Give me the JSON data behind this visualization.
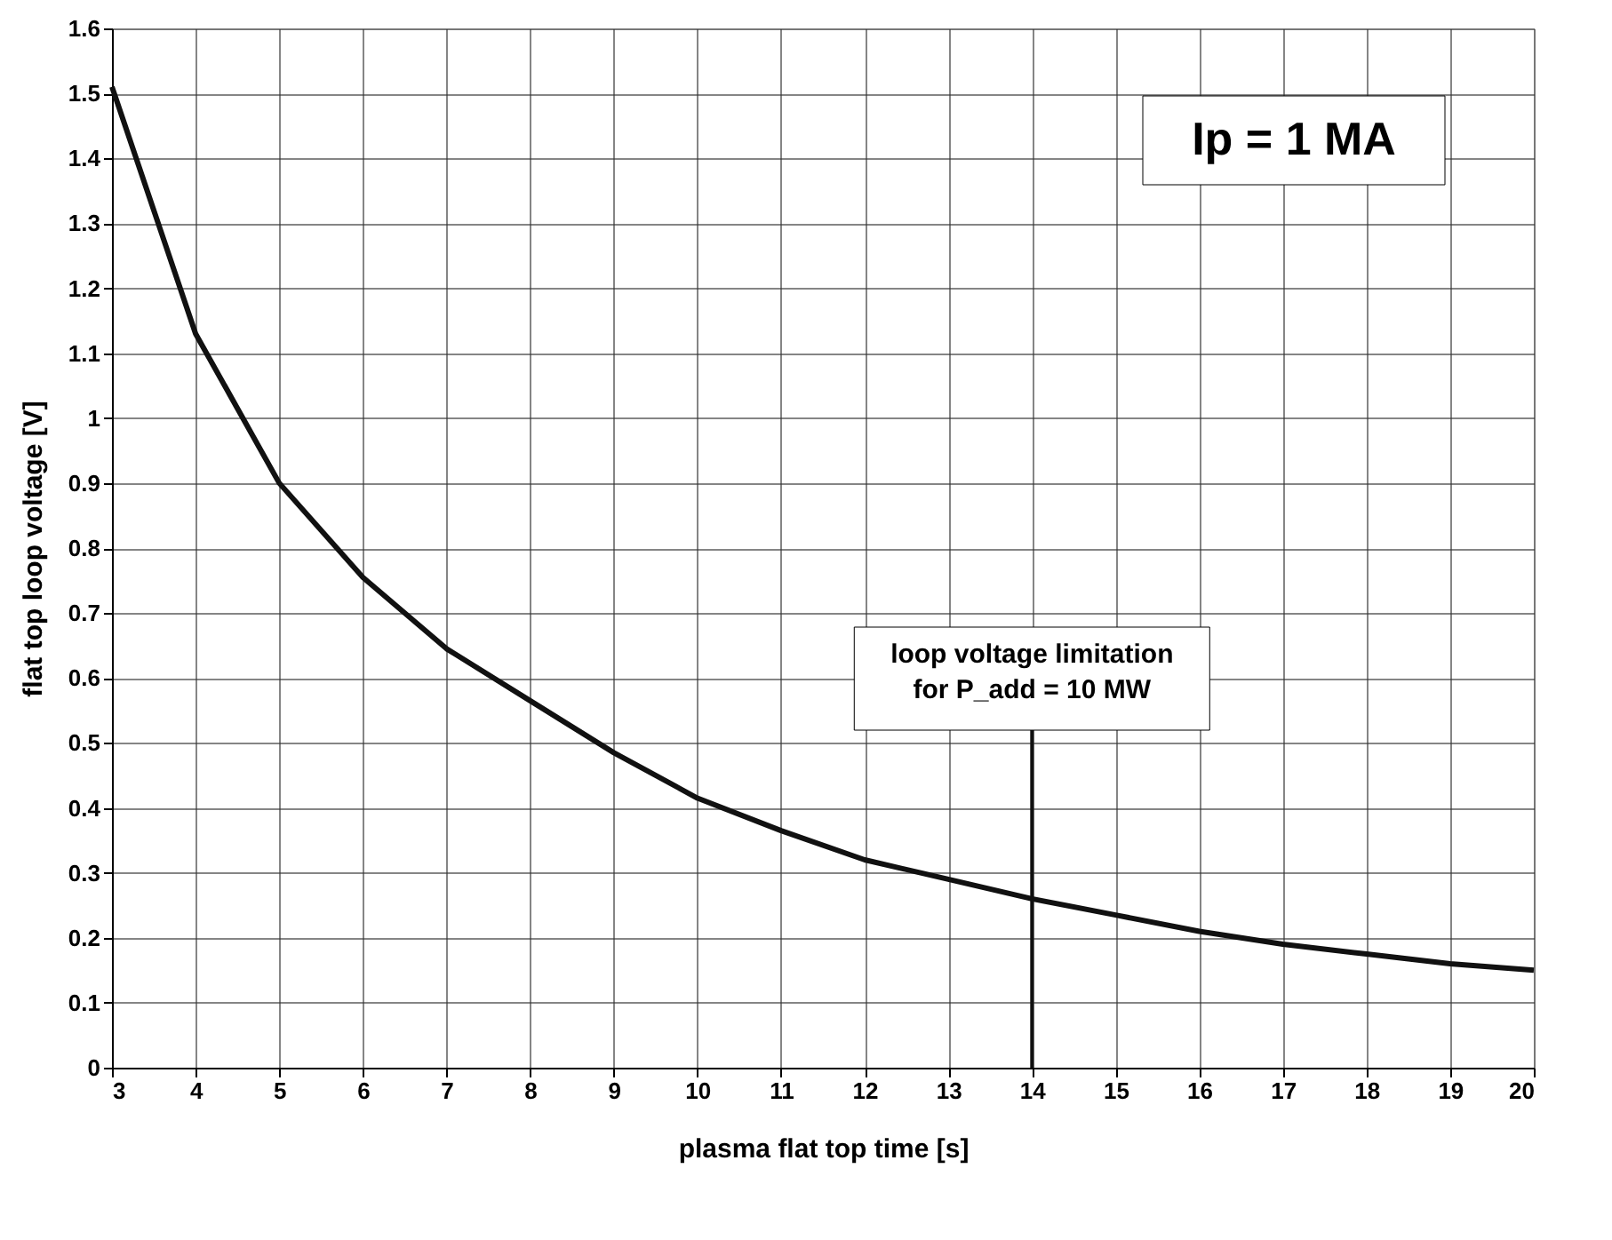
{
  "chart_data": {
    "type": "line",
    "xlabel": "plasma flat top time [s]",
    "ylabel": "flat top loop voltage [V]",
    "x": [
      3,
      4,
      5,
      6,
      7,
      8,
      9,
      10,
      11,
      12,
      13,
      14,
      15,
      16,
      17,
      18,
      19,
      20
    ],
    "series": [
      {
        "color": "#111111",
        "values": [
          1.51,
          1.13,
          0.9,
          0.755,
          0.645,
          0.565,
          0.485,
          0.415,
          0.365,
          0.32,
          0.29,
          0.26,
          0.235,
          0.21,
          0.19,
          0.175,
          0.16,
          0.15
        ]
      }
    ],
    "xlim": [
      3,
      20
    ],
    "xticks": [
      3,
      4,
      5,
      6,
      7,
      8,
      9,
      10,
      11,
      12,
      13,
      14,
      15,
      16,
      17,
      18,
      19,
      20
    ],
    "ylim": [
      0,
      1.6
    ],
    "yticks": [
      0,
      0.1,
      0.2,
      0.3,
      0.4,
      0.5,
      0.6,
      0.7,
      0.8,
      0.9,
      1,
      1.1,
      1.2,
      1.3,
      1.4,
      1.5,
      1.6
    ],
    "ref_lines": [
      {
        "axis": "x",
        "value": 14,
        "color": "#111111"
      }
    ],
    "annotations": [
      "Ip = 1 MA",
      "loop voltage limitation\nfor P_add = 10 MW"
    ],
    "grid": true,
    "marker": "none",
    "line_style": "solid"
  }
}
